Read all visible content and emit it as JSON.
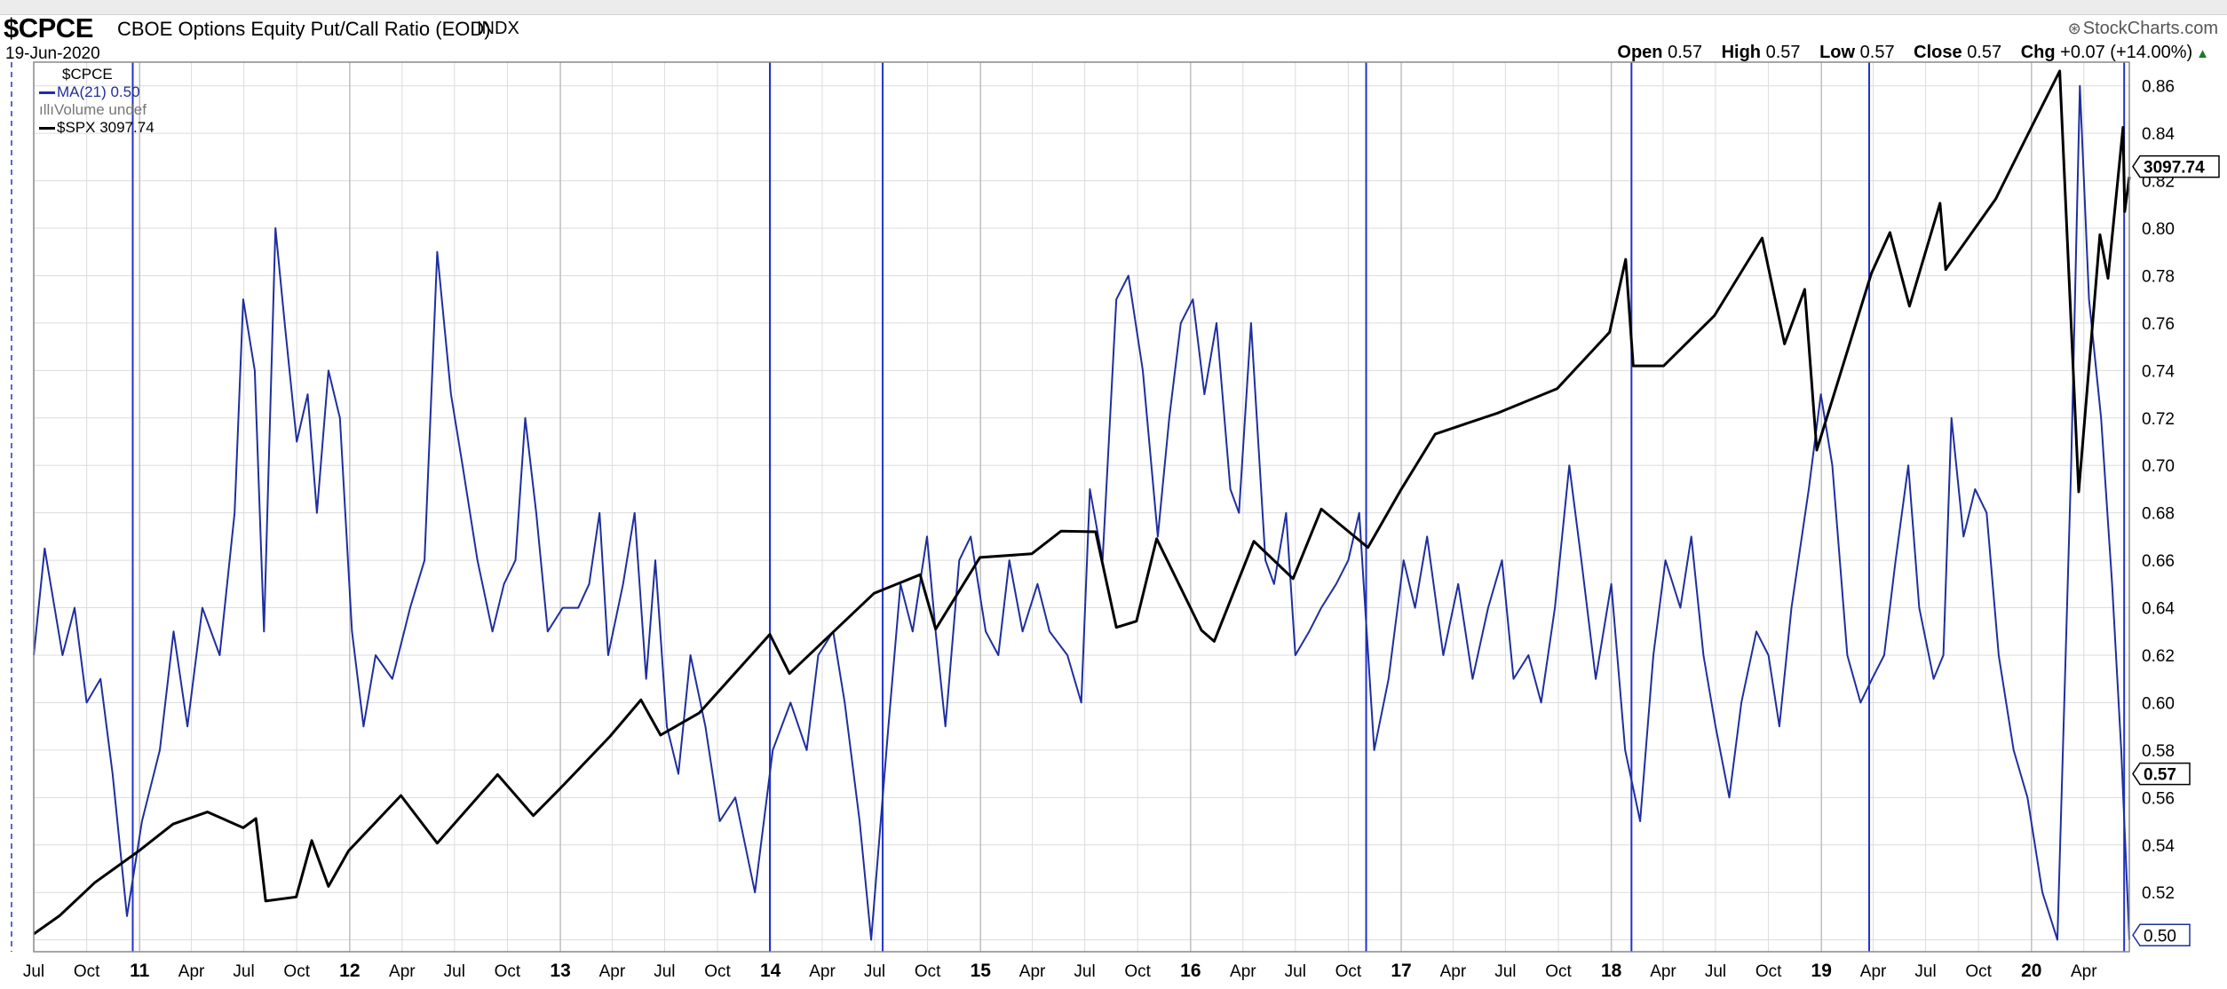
{
  "header": {
    "symbol": "$CPCE",
    "name": "CBOE Options Equity Put/Call Ratio (EOD)",
    "exchange": "INDX",
    "date": "19-Jun-2020",
    "brand": "StockCharts.com",
    "brand_icon": "stockcharts-logo-icon",
    "quote": {
      "open_label": "Open",
      "open": "0.57",
      "high_label": "High",
      "high": "0.57",
      "low_label": "Low",
      "low": "0.57",
      "close_label": "Close",
      "close": "0.57",
      "chg_label": "Chg",
      "chg": "+0.07 (+14.00%)",
      "chg_icon": "up-arrow-icon"
    }
  },
  "legend": {
    "items": [
      {
        "label": "$CPCE",
        "color": "#000000",
        "icon": "none"
      },
      {
        "label": "MA(21) 0.50",
        "color": "#1f2f9e",
        "icon": "line-swatch-icon"
      },
      {
        "label": "Volume undef",
        "color": "#888888",
        "icon": "volume-bars-icon"
      },
      {
        "label": "$SPX 3097.74",
        "color": "#000000",
        "icon": "line-swatch-icon"
      }
    ]
  },
  "colors": {
    "ma_line": "#1f2f9e",
    "spx_line": "#000000",
    "marker_line": "#2233cc",
    "grid": "#dcdcdc",
    "year_grid": "#bfbfbf"
  },
  "chart_data": {
    "type": "line",
    "title": "$CPCE CBOE Options Equity Put/Call Ratio (EOD)",
    "x_axis": {
      "start": "2010-07-01",
      "end": "2020-06-19",
      "tick_labels": [
        "Jul",
        "Oct",
        "11",
        "Apr",
        "Jul",
        "Oct",
        "12",
        "Apr",
        "Jul",
        "Oct",
        "13",
        "Apr",
        "Jul",
        "Oct",
        "14",
        "Apr",
        "Jul",
        "Oct",
        "15",
        "Apr",
        "Jul",
        "Oct",
        "16",
        "Apr",
        "Jul",
        "Oct",
        "17",
        "Apr",
        "Jul",
        "Oct",
        "18",
        "Apr",
        "Jul",
        "Oct",
        "19",
        "Apr",
        "Jul",
        "Oct",
        "20",
        "Apr"
      ]
    },
    "y_axis": {
      "ylim": [
        0.495,
        0.87
      ],
      "ticks": [
        0.5,
        0.52,
        0.54,
        0.56,
        0.58,
        0.6,
        0.62,
        0.64,
        0.66,
        0.68,
        0.7,
        0.72,
        0.74,
        0.76,
        0.78,
        0.8,
        0.82,
        0.84,
        0.86
      ],
      "side": "right"
    },
    "grid": true,
    "legend_placement": "top-left",
    "value_tags": [
      {
        "label": "3097.74",
        "series": "$SPX",
        "value": 0.826
      },
      {
        "label": "0.57",
        "series": "$CPCE",
        "value": 0.57
      },
      {
        "label": "0.50",
        "series": "MA(21)",
        "value": 0.502
      }
    ],
    "vertical_markers": [
      "2010-12-20",
      "2013-12-31",
      "2014-07-15",
      "2016-11-01",
      "2018-02-05",
      "2019-03-25",
      "2020-06-10"
    ],
    "series": [
      {
        "name": "MA(21) 0.50",
        "scale": "ratio",
        "points": [
          [
            "2010-07-01",
            0.62
          ],
          [
            "2010-07-20",
            0.665
          ],
          [
            "2010-08-20",
            0.62
          ],
          [
            "2010-09-10",
            0.64
          ],
          [
            "2010-10-01",
            0.6
          ],
          [
            "2010-10-25",
            0.61
          ],
          [
            "2010-11-15",
            0.57
          ],
          [
            "2010-12-10",
            0.51
          ],
          [
            "2011-01-05",
            0.55
          ],
          [
            "2011-02-05",
            0.58
          ],
          [
            "2011-03-01",
            0.63
          ],
          [
            "2011-03-25",
            0.59
          ],
          [
            "2011-04-20",
            0.64
          ],
          [
            "2011-05-20",
            0.62
          ],
          [
            "2011-06-15",
            0.68
          ],
          [
            "2011-06-30",
            0.77
          ],
          [
            "2011-07-20",
            0.74
          ],
          [
            "2011-08-05",
            0.63
          ],
          [
            "2011-08-25",
            0.8
          ],
          [
            "2011-09-10",
            0.76
          ],
          [
            "2011-10-01",
            0.71
          ],
          [
            "2011-10-20",
            0.73
          ],
          [
            "2011-11-05",
            0.68
          ],
          [
            "2011-11-25",
            0.74
          ],
          [
            "2011-12-15",
            0.72
          ],
          [
            "2012-01-05",
            0.63
          ],
          [
            "2012-01-25",
            0.59
          ],
          [
            "2012-02-15",
            0.62
          ],
          [
            "2012-03-15",
            0.61
          ],
          [
            "2012-04-15",
            0.64
          ],
          [
            "2012-05-10",
            0.66
          ],
          [
            "2012-06-01",
            0.79
          ],
          [
            "2012-06-25",
            0.73
          ],
          [
            "2012-07-15",
            0.7
          ],
          [
            "2012-08-10",
            0.66
          ],
          [
            "2012-09-05",
            0.63
          ],
          [
            "2012-09-25",
            0.65
          ],
          [
            "2012-10-15",
            0.66
          ],
          [
            "2012-11-01",
            0.72
          ],
          [
            "2012-11-20",
            0.68
          ],
          [
            "2012-12-10",
            0.63
          ],
          [
            "2013-01-05",
            0.64
          ],
          [
            "2013-02-01",
            0.64
          ],
          [
            "2013-02-20",
            0.65
          ],
          [
            "2013-03-10",
            0.68
          ],
          [
            "2013-03-25",
            0.62
          ],
          [
            "2013-04-20",
            0.65
          ],
          [
            "2013-05-10",
            0.68
          ],
          [
            "2013-05-30",
            0.61
          ],
          [
            "2013-06-15",
            0.66
          ],
          [
            "2013-07-05",
            0.59
          ],
          [
            "2013-07-25",
            0.57
          ],
          [
            "2013-08-15",
            0.62
          ],
          [
            "2013-09-10",
            0.59
          ],
          [
            "2013-10-05",
            0.55
          ],
          [
            "2013-11-01",
            0.56
          ],
          [
            "2013-12-05",
            0.52
          ],
          [
            "2014-01-05",
            0.58
          ],
          [
            "2014-02-05",
            0.6
          ],
          [
            "2014-03-05",
            0.58
          ],
          [
            "2014-03-25",
            0.62
          ],
          [
            "2014-04-20",
            0.63
          ],
          [
            "2014-05-10",
            0.6
          ],
          [
            "2014-06-05",
            0.55
          ],
          [
            "2014-06-25",
            0.5
          ],
          [
            "2014-07-25",
            0.59
          ],
          [
            "2014-08-15",
            0.65
          ],
          [
            "2014-09-05",
            0.63
          ],
          [
            "2014-09-30",
            0.67
          ],
          [
            "2014-10-15",
            0.63
          ],
          [
            "2014-11-01",
            0.59
          ],
          [
            "2014-11-25",
            0.66
          ],
          [
            "2014-12-15",
            0.67
          ],
          [
            "2015-01-10",
            0.63
          ],
          [
            "2015-02-01",
            0.62
          ],
          [
            "2015-02-20",
            0.66
          ],
          [
            "2015-03-15",
            0.63
          ],
          [
            "2015-04-10",
            0.65
          ],
          [
            "2015-05-01",
            0.63
          ],
          [
            "2015-06-01",
            0.62
          ],
          [
            "2015-06-25",
            0.6
          ],
          [
            "2015-07-10",
            0.69
          ],
          [
            "2015-08-01",
            0.66
          ],
          [
            "2015-08-25",
            0.77
          ],
          [
            "2015-09-15",
            0.78
          ],
          [
            "2015-10-10",
            0.74
          ],
          [
            "2015-11-05",
            0.67
          ],
          [
            "2015-11-25",
            0.72
          ],
          [
            "2015-12-15",
            0.76
          ],
          [
            "2016-01-05",
            0.77
          ],
          [
            "2016-01-25",
            0.73
          ],
          [
            "2016-02-15",
            0.76
          ],
          [
            "2016-03-10",
            0.69
          ],
          [
            "2016-03-25",
            0.68
          ],
          [
            "2016-04-15",
            0.76
          ],
          [
            "2016-05-10",
            0.66
          ],
          [
            "2016-05-25",
            0.65
          ],
          [
            "2016-06-15",
            0.68
          ],
          [
            "2016-07-01",
            0.62
          ],
          [
            "2016-07-25",
            0.63
          ],
          [
            "2016-08-15",
            0.64
          ],
          [
            "2016-09-10",
            0.65
          ],
          [
            "2016-10-01",
            0.66
          ],
          [
            "2016-10-20",
            0.68
          ],
          [
            "2016-11-15",
            0.58
          ],
          [
            "2016-12-10",
            0.61
          ],
          [
            "2017-01-05",
            0.66
          ],
          [
            "2017-01-25",
            0.64
          ],
          [
            "2017-02-15",
            0.67
          ],
          [
            "2017-03-15",
            0.62
          ],
          [
            "2017-04-10",
            0.65
          ],
          [
            "2017-05-05",
            0.61
          ],
          [
            "2017-06-01",
            0.64
          ],
          [
            "2017-06-25",
            0.66
          ],
          [
            "2017-07-15",
            0.61
          ],
          [
            "2017-08-10",
            0.62
          ],
          [
            "2017-09-01",
            0.6
          ],
          [
            "2017-09-25",
            0.64
          ],
          [
            "2017-10-20",
            0.7
          ],
          [
            "2017-11-10",
            0.66
          ],
          [
            "2017-12-05",
            0.61
          ],
          [
            "2018-01-01",
            0.65
          ],
          [
            "2018-01-25",
            0.58
          ],
          [
            "2018-02-20",
            0.55
          ],
          [
            "2018-03-15",
            0.62
          ],
          [
            "2018-04-05",
            0.66
          ],
          [
            "2018-05-01",
            0.64
          ],
          [
            "2018-05-20",
            0.67
          ],
          [
            "2018-06-10",
            0.62
          ],
          [
            "2018-07-01",
            0.59
          ],
          [
            "2018-07-25",
            0.56
          ],
          [
            "2018-08-15",
            0.6
          ],
          [
            "2018-09-10",
            0.63
          ],
          [
            "2018-10-01",
            0.62
          ],
          [
            "2018-10-20",
            0.59
          ],
          [
            "2018-11-10",
            0.64
          ],
          [
            "2018-12-10",
            0.69
          ],
          [
            "2018-12-31",
            0.73
          ],
          [
            "2019-01-20",
            0.7
          ],
          [
            "2019-02-15",
            0.62
          ],
          [
            "2019-03-10",
            0.6
          ],
          [
            "2019-03-30",
            0.61
          ],
          [
            "2019-04-20",
            0.62
          ],
          [
            "2019-05-10",
            0.66
          ],
          [
            "2019-06-01",
            0.7
          ],
          [
            "2019-06-20",
            0.64
          ],
          [
            "2019-07-15",
            0.61
          ],
          [
            "2019-08-01",
            0.62
          ],
          [
            "2019-08-15",
            0.72
          ],
          [
            "2019-09-05",
            0.67
          ],
          [
            "2019-09-25",
            0.69
          ],
          [
            "2019-10-15",
            0.68
          ],
          [
            "2019-11-05",
            0.62
          ],
          [
            "2019-12-01",
            0.58
          ],
          [
            "2019-12-25",
            0.56
          ],
          [
            "2020-01-20",
            0.52
          ],
          [
            "2020-02-15",
            0.5
          ],
          [
            "2020-03-10",
            0.7
          ],
          [
            "2020-03-25",
            0.86
          ],
          [
            "2020-04-10",
            0.77
          ],
          [
            "2020-05-01",
            0.72
          ],
          [
            "2020-05-20",
            0.65
          ],
          [
            "2020-06-05",
            0.58
          ],
          [
            "2020-06-19",
            0.5
          ]
        ]
      },
      {
        "name": "$SPX 3097.74",
        "scale": "overlay",
        "points": [
          [
            "2010-07-01",
            1030
          ],
          [
            "2010-08-15",
            1080
          ],
          [
            "2010-10-15",
            1170
          ],
          [
            "2010-12-31",
            1257
          ],
          [
            "2011-02-28",
            1330
          ],
          [
            "2011-04-29",
            1363
          ],
          [
            "2011-06-30",
            1320
          ],
          [
            "2011-07-22",
            1345
          ],
          [
            "2011-08-08",
            1120
          ],
          [
            "2011-09-30",
            1131
          ],
          [
            "2011-10-27",
            1285
          ],
          [
            "2011-11-25",
            1160
          ],
          [
            "2011-12-30",
            1257
          ],
          [
            "2012-03-30",
            1408
          ],
          [
            "2012-06-01",
            1278
          ],
          [
            "2012-09-14",
            1465
          ],
          [
            "2012-11-15",
            1353
          ],
          [
            "2012-12-31",
            1426
          ],
          [
            "2013-03-28",
            1569
          ],
          [
            "2013-05-21",
            1669
          ],
          [
            "2013-06-24",
            1573
          ],
          [
            "2013-08-30",
            1633
          ],
          [
            "2013-12-31",
            1848
          ],
          [
            "2014-02-03",
            1741
          ],
          [
            "2014-06-30",
            1960
          ],
          [
            "2014-09-18",
            2011
          ],
          [
            "2014-10-15",
            1862
          ],
          [
            "2014-12-31",
            2058
          ],
          [
            "2015-03-31",
            2068
          ],
          [
            "2015-05-21",
            2130
          ],
          [
            "2015-07-20",
            2128
          ],
          [
            "2015-08-25",
            1867
          ],
          [
            "2015-09-29",
            1884
          ],
          [
            "2015-11-03",
            2109
          ],
          [
            "2016-01-20",
            1859
          ],
          [
            "2016-02-11",
            1829
          ],
          [
            "2016-04-20",
            2102
          ],
          [
            "2016-06-27",
            2000
          ],
          [
            "2016-08-15",
            2190
          ],
          [
            "2016-11-04",
            2085
          ],
          [
            "2016-12-30",
            2239
          ],
          [
            "2017-03-01",
            2395
          ],
          [
            "2017-06-19",
            2453
          ],
          [
            "2017-09-29",
            2519
          ],
          [
            "2017-12-29",
            2673
          ],
          [
            "2018-01-26",
            2872
          ],
          [
            "2018-02-08",
            2581
          ],
          [
            "2018-04-02",
            2581
          ],
          [
            "2018-06-29",
            2718
          ],
          [
            "2018-09-20",
            2930
          ],
          [
            "2018-10-29",
            2641
          ],
          [
            "2018-12-03",
            2790
          ],
          [
            "2018-12-24",
            2351
          ],
          [
            "2019-03-29",
            2834
          ],
          [
            "2019-04-30",
            2945
          ],
          [
            "2019-06-03",
            2744
          ],
          [
            "2019-07-26",
            3025
          ],
          [
            "2019-08-05",
            2844
          ],
          [
            "2019-10-31",
            3037
          ],
          [
            "2019-12-31",
            3230
          ],
          [
            "2020-02-19",
            3386
          ],
          [
            "2020-03-23",
            2237
          ],
          [
            "2020-04-29",
            2939
          ],
          [
            "2020-05-13",
            2820
          ],
          [
            "2020-06-08",
            3232
          ],
          [
            "2020-06-11",
            3002
          ],
          [
            "2020-06-19",
            3097
          ]
        ]
      }
    ]
  }
}
